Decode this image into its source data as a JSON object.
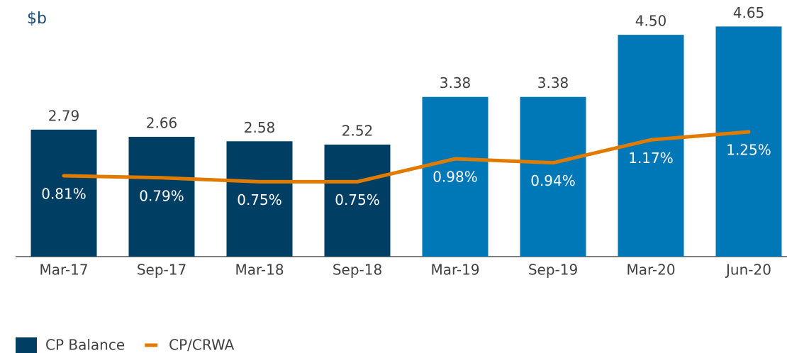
{
  "chart_data": {
    "type": "bar-line",
    "title": "$b",
    "categories": [
      "Mar-17",
      "Sep-17",
      "Mar-18",
      "Sep-18",
      "Mar-19",
      "Sep-19",
      "Mar-20",
      "Jun-20"
    ],
    "series": [
      {
        "name": "CP Balance",
        "type": "bar",
        "color": "#003f63",
        "colors": [
          "#003f63",
          "#003f63",
          "#003f63",
          "#003f63",
          "#0077b6",
          "#0077b6",
          "#0077b6",
          "#0077b6"
        ],
        "values": [
          2.79,
          2.66,
          2.58,
          2.52,
          3.38,
          3.38,
          4.5,
          4.65
        ],
        "value_labels": [
          "2.79",
          "2.66",
          "2.58",
          "2.52",
          "3.38",
          "3.38",
          "4.50",
          "4.65"
        ]
      },
      {
        "name": "CP/CRWA",
        "type": "line",
        "axis": "y2",
        "color": "#e07b00",
        "values": [
          0.81,
          0.79,
          0.75,
          0.75,
          0.98,
          0.94,
          1.17,
          1.25
        ],
        "value_labels": [
          "0.81%",
          "0.79%",
          "0.75%",
          "0.75%",
          "0.98%",
          "0.94%",
          "1.17%",
          "1.25%"
        ]
      }
    ],
    "ylim": [
      0.5,
      5.0
    ],
    "y2lim": [
      0,
      2.5
    ],
    "legend": "bottom-left"
  }
}
